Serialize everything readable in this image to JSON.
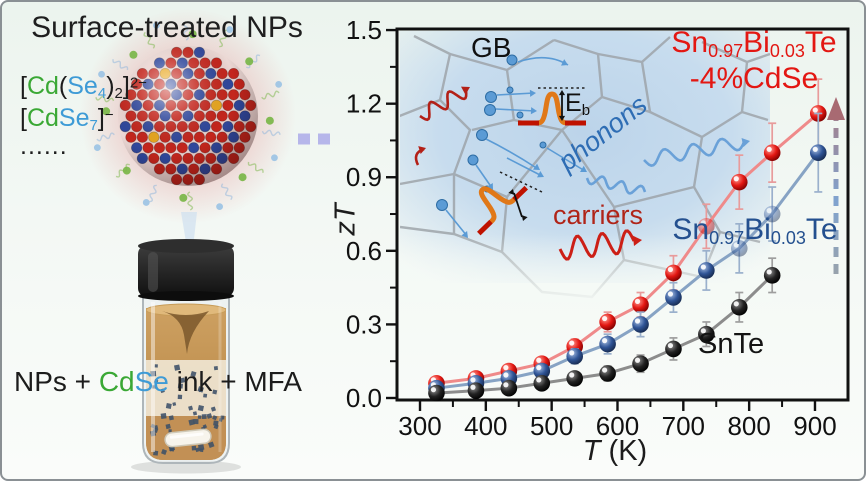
{
  "left_panel": {
    "title": "Surface-treated NPs",
    "formula1": {
      "br1": "[",
      "cd": "Cd",
      "p1": "(",
      "se": "Se",
      "sub1": "4",
      "p2": ")",
      "sub2": "2",
      "br2": "]",
      "sup": "2−"
    },
    "formula2": {
      "br1": "[",
      "cd": "Cd",
      "se": "Se",
      "sub1": "7",
      "br2": "]",
      "sup": "−"
    },
    "dots": "......",
    "vial_label": {
      "pre": "NPs + ",
      "cd": "Cd",
      "se": "Se",
      "post": " ink + MFA"
    }
  },
  "chart": {
    "ylabel": "zT",
    "xlabel_T": "T",
    "xlabel_unit": " (K)",
    "legend_red": {
      "p1": "Sn",
      "s1": "0.97",
      "p2": "Bi",
      "s2": "0.03",
      "p3": "Te",
      "line2": "-4%CdSe"
    },
    "legend_blue": {
      "p1": "Sn",
      "s1": "0.97",
      "p2": "Bi",
      "s2": "0.03",
      "p3": "Te"
    },
    "legend_black": "SnTe",
    "inset": {
      "gb": "GB",
      "eb_main": "E",
      "eb_sub": "b",
      "phonons": "phonons",
      "carriers": "carriers"
    }
  },
  "colors": {
    "red_marker": "#e31712",
    "red_line": "#ef8a8a",
    "red_err": "#e89b9b",
    "blue_marker": "#2f5496",
    "blue_line": "#87a3c4",
    "blue_err": "#9ab0cc",
    "black_marker": "#1a1a1a",
    "black_line": "#8c8c8c",
    "black_err": "#9e9e9e",
    "cd_green": "#3aa835",
    "se_blue": "#3e9bd6",
    "accent_purple": "#b6b6ea",
    "inset_blue": "#c7dcee",
    "barrier_orange": "#e07818",
    "barrier_red": "#bf1200",
    "phonon_blue": "#2e6db4",
    "carrier_red": "#b02418",
    "trend_arrow": "#a86a72"
  },
  "chart_data": {
    "type": "line-scatter",
    "title": "",
    "xlabel": "T (K)",
    "ylabel": "zT",
    "xlim": [
      265,
      955
    ],
    "ylim": [
      0,
      1.5
    ],
    "xticks": [
      300,
      400,
      500,
      600,
      700,
      800,
      900
    ],
    "xminor_step": 50,
    "yticks": [
      0.0,
      0.3,
      0.6,
      0.9,
      1.2,
      1.5
    ],
    "yminor_step": 0.15,
    "grid": false,
    "legend_position": "inside-right",
    "series": [
      {
        "name": "Sn0.97Bi0.03Te-4%CdSe",
        "marker_color": "#e31712",
        "line_color": "#ef8a8a",
        "err_color": "#e89b9b",
        "x": [
          325,
          385,
          435,
          485,
          535,
          585,
          635,
          685,
          735,
          785,
          835,
          905
        ],
        "y": [
          0.06,
          0.08,
          0.11,
          0.14,
          0.21,
          0.31,
          0.38,
          0.51,
          0.7,
          0.88,
          1.0,
          1.16
        ],
        "yerr": [
          0.01,
          0.01,
          0.015,
          0.02,
          0.03,
          0.04,
          0.05,
          0.07,
          0.09,
          0.11,
          0.12,
          0.14
        ],
        "faded_idx": [
          8
        ]
      },
      {
        "name": "Sn0.97Bi0.03Te",
        "marker_color": "#2f5496",
        "line_color": "#87a3c4",
        "err_color": "#9ab0cc",
        "x": [
          325,
          385,
          435,
          485,
          535,
          585,
          635,
          685,
          735,
          785,
          835,
          905
        ],
        "y": [
          0.04,
          0.06,
          0.08,
          0.11,
          0.17,
          0.22,
          0.3,
          0.41,
          0.52,
          0.61,
          0.75,
          1.0
        ],
        "yerr": [
          0.01,
          0.01,
          0.015,
          0.02,
          0.03,
          0.04,
          0.05,
          0.06,
          0.08,
          0.1,
          0.11,
          0.16
        ],
        "faded_idx": [
          9,
          10
        ]
      },
      {
        "name": "SnTe",
        "marker_color": "#1a1a1a",
        "line_color": "#8c8c8c",
        "err_color": "#9e9e9e",
        "x": [
          325,
          385,
          435,
          485,
          535,
          585,
          635,
          685,
          735,
          785,
          835
        ],
        "y": [
          0.02,
          0.03,
          0.04,
          0.06,
          0.08,
          0.1,
          0.14,
          0.2,
          0.26,
          0.37,
          0.5
        ],
        "yerr": [
          0.008,
          0.01,
          0.012,
          0.015,
          0.02,
          0.03,
          0.035,
          0.045,
          0.05,
          0.06,
          0.07
        ],
        "faded_idx": []
      }
    ]
  }
}
